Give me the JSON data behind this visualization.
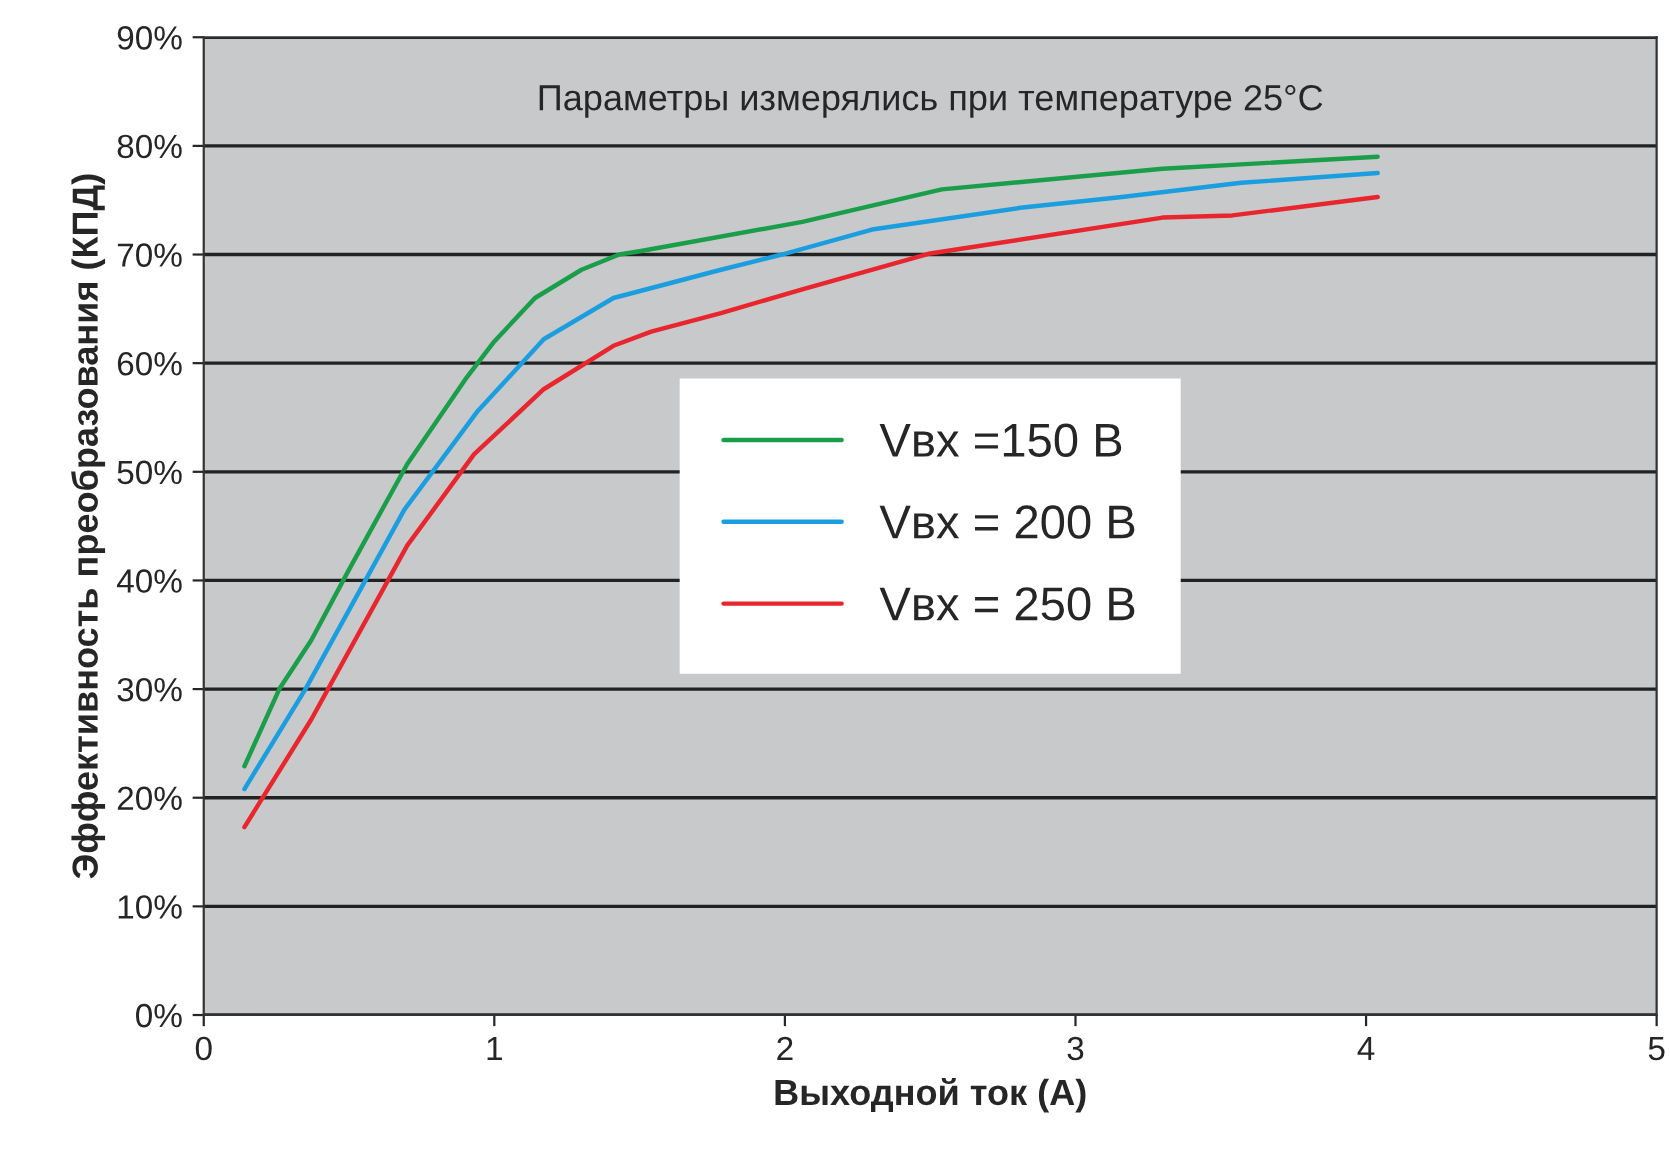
{
  "chart_data": {
    "type": "line",
    "xlabel": "Выходной ток (А)",
    "ylabel": "Эффективность преобразования (КПД)",
    "annotations": [
      "Параметры измерялись при температуре 25°C"
    ],
    "xlim": [
      0,
      5
    ],
    "xticks": [
      0,
      1,
      2,
      3,
      4,
      5
    ],
    "ylim": [
      0,
      90
    ],
    "yticks": [
      {
        "value": 0,
        "label": "0%"
      },
      {
        "value": 10,
        "label": "10%"
      },
      {
        "value": 20,
        "label": "20%"
      },
      {
        "value": 30,
        "label": "30%"
      },
      {
        "value": 40,
        "label": "40%"
      },
      {
        "value": 50,
        "label": "50%"
      },
      {
        "value": 60,
        "label": "60%"
      },
      {
        "value": 70,
        "label": "70%"
      },
      {
        "value": 80,
        "label": "80%"
      },
      {
        "value": 90,
        "label": "90%"
      }
    ],
    "grid": "y",
    "legend": "center",
    "marker": "none",
    "line_style": "solid",
    "series": [
      {
        "name": "Vвх =150 В",
        "color": "#1a9e4a",
        "x": [
          0.14,
          0.26,
          0.37,
          0.5,
          0.7,
          0.9,
          1.0,
          1.14,
          1.3,
          1.43,
          1.5,
          2.06,
          2.54,
          3.3,
          3.57,
          4.04
        ],
        "values": [
          22.9,
          30,
          34.5,
          41,
          50.7,
          58.5,
          62,
          66,
          68.6,
          70,
          70.3,
          73,
          76,
          77.9,
          78.3,
          79
        ]
      },
      {
        "name": "Vвх = 200 В",
        "color": "#1a9ee0",
        "x": [
          0.14,
          0.35,
          0.69,
          0.94,
          1.17,
          1.41,
          1.78,
          1.99,
          2.3,
          2.81,
          3.16,
          3.57,
          4.04
        ],
        "values": [
          20.8,
          30,
          46.5,
          55.5,
          62.2,
          66,
          68.6,
          70,
          72.3,
          74.3,
          75.3,
          76.6,
          77.5
        ]
      },
      {
        "name": "Vвх = 250 В",
        "color": "#e8262e",
        "x": [
          0.14,
          0.37,
          0.7,
          0.93,
          1.17,
          1.41,
          1.54,
          1.78,
          2.06,
          2.5,
          3.3,
          3.54,
          4.04
        ],
        "values": [
          17.3,
          27.2,
          43.2,
          51.6,
          57.6,
          61.6,
          62.9,
          64.6,
          66.8,
          70.1,
          73.4,
          73.6,
          75.3
        ]
      }
    ]
  }
}
